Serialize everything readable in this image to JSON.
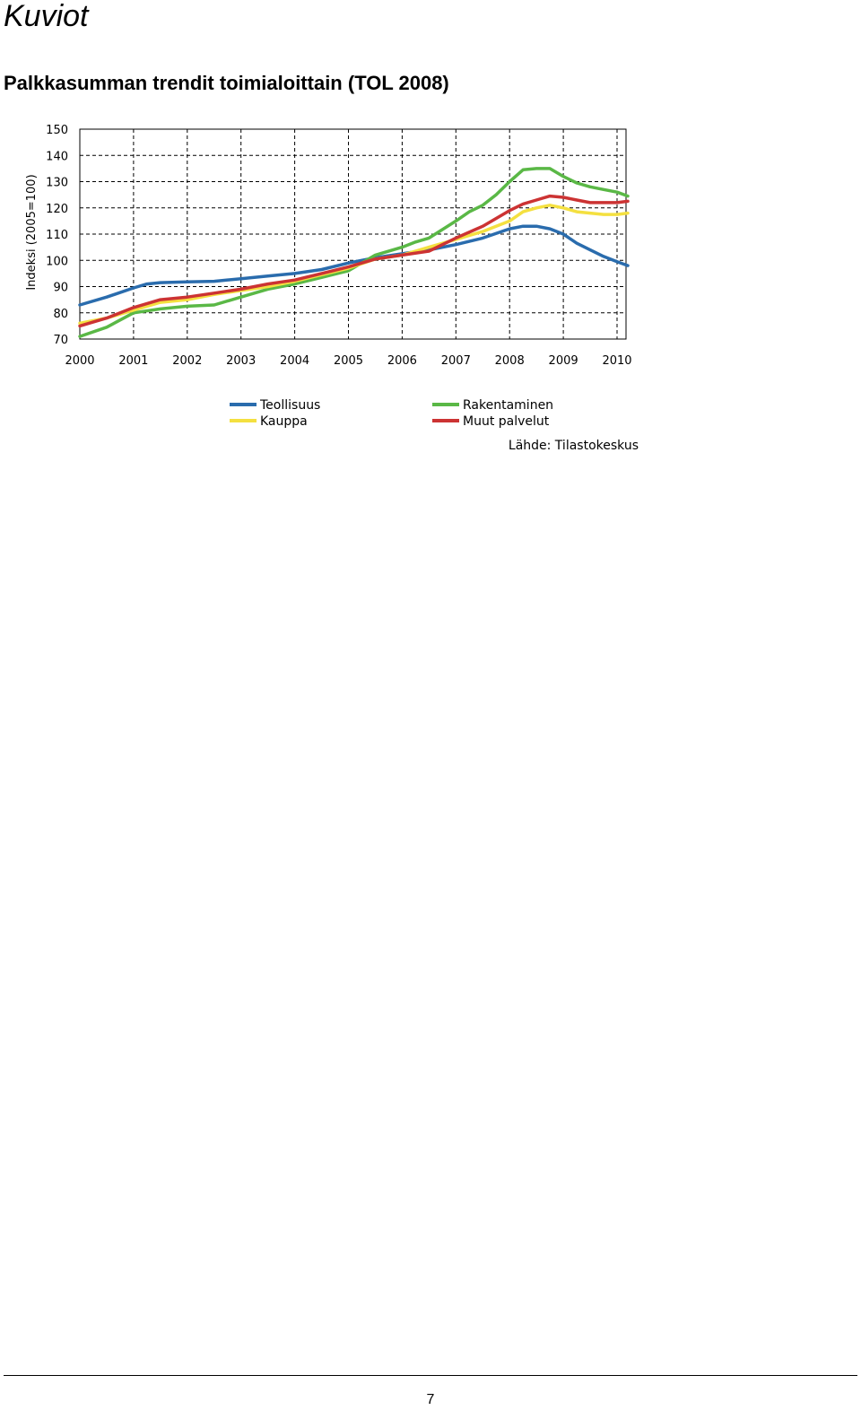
{
  "page": {
    "section_heading": "Kuviot",
    "chart_heading": "Palkkasumman trendit toimialoittain (TOL 2008)",
    "page_number": "7"
  },
  "chart_data": {
    "type": "line",
    "title": "",
    "xlabel": "",
    "ylabel": "Indeksi (2005=100)",
    "xlim": [
      2000,
      2010.2
    ],
    "ylim": [
      70,
      150
    ],
    "yticks": [
      70,
      80,
      90,
      100,
      110,
      120,
      130,
      140,
      150
    ],
    "xticks": [
      2000,
      2001,
      2002,
      2003,
      2004,
      2005,
      2006,
      2007,
      2008,
      2009,
      2010
    ],
    "grid": true,
    "legend_position": "bottom",
    "source": "Lähde: Tilastokeskus",
    "series": [
      {
        "name": "Teollisuus",
        "color": "#2a6cad",
        "x": [
          2000,
          2000.5,
          2001,
          2001.25,
          2001.5,
          2002,
          2002.5,
          2003,
          2003.5,
          2004,
          2004.5,
          2005,
          2005.5,
          2006,
          2006.5,
          2007,
          2007.5,
          2008,
          2008.25,
          2008.5,
          2008.75,
          2009,
          2009.25,
          2009.5,
          2009.75,
          2010,
          2010.2
        ],
        "y": [
          83,
          86,
          89.5,
          91,
          91.5,
          91.8,
          92,
          93,
          94,
          95,
          96.5,
          99,
          101,
          102.5,
          104,
          106,
          108.5,
          112,
          113,
          113,
          112,
          110,
          106.5,
          104,
          101.5,
          99.5,
          98
        ]
      },
      {
        "name": "Rakentaminen",
        "color": "#5ab846",
        "x": [
          2000,
          2000.5,
          2001,
          2001.5,
          2002,
          2002.5,
          2003,
          2003.5,
          2004,
          2004.5,
          2005,
          2005.5,
          2006,
          2006.25,
          2006.5,
          2007,
          2007.25,
          2007.5,
          2007.75,
          2008,
          2008.25,
          2008.5,
          2008.75,
          2009,
          2009.25,
          2009.5,
          2009.75,
          2010,
          2010.2
        ],
        "y": [
          71,
          74.5,
          80,
          81.5,
          82.5,
          83,
          86,
          89,
          91,
          93.5,
          96,
          102,
          105,
          107,
          108.5,
          115,
          118.5,
          121,
          125,
          130,
          134.5,
          135,
          135,
          132,
          129.5,
          128,
          127,
          126,
          124.5
        ]
      },
      {
        "name": "Kauppa",
        "color": "#f4e040",
        "x": [
          2000,
          2000.5,
          2001,
          2001.5,
          2002,
          2002.5,
          2003,
          2003.5,
          2004,
          2004.5,
          2005,
          2005.5,
          2006,
          2006.5,
          2007,
          2007.5,
          2008,
          2008.25,
          2008.5,
          2008.75,
          2009,
          2009.25,
          2009.5,
          2009.75,
          2010,
          2010.2
        ],
        "y": [
          76,
          78,
          81,
          84,
          85,
          87,
          88.5,
          90,
          92,
          94.5,
          97,
          100.5,
          102,
          105,
          108,
          111,
          115,
          118.5,
          120,
          121,
          120,
          118.5,
          118,
          117.5,
          117.5,
          118
        ]
      },
      {
        "name": "Muut palvelut",
        "color": "#cc3333",
        "x": [
          2000,
          2000.5,
          2001,
          2001.5,
          2002,
          2002.5,
          2003,
          2003.5,
          2004,
          2004.5,
          2005,
          2005.5,
          2006,
          2006.5,
          2007,
          2007.5,
          2008,
          2008.25,
          2008.5,
          2008.75,
          2009,
          2009.25,
          2009.5,
          2009.75,
          2010,
          2010.2
        ],
        "y": [
          75,
          78,
          82,
          85,
          86,
          87.5,
          89,
          91,
          92.5,
          95,
          97.5,
          100.5,
          102,
          103.5,
          108.5,
          113,
          119,
          121.5,
          123,
          124.5,
          124,
          123,
          122,
          122,
          122,
          122.5
        ]
      }
    ]
  }
}
